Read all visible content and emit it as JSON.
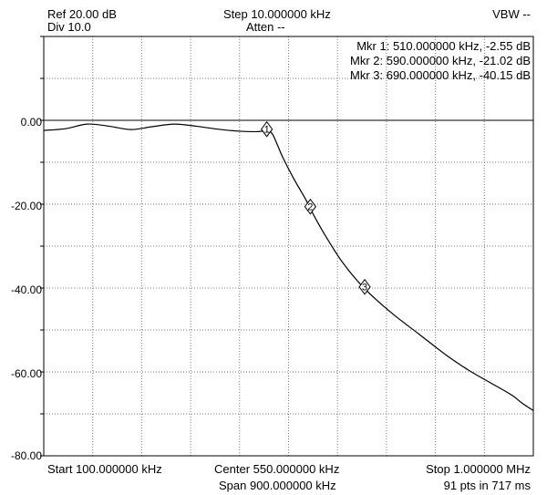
{
  "header": {
    "ref": "Ref 20.00 dB",
    "div": "Div 10.0",
    "step": "Step 10.000000 kHz",
    "atten": "Atten --",
    "vbw": "VBW --"
  },
  "markers_text": [
    "Mkr 1: 510.000000 kHz, -2.55 dB",
    "Mkr 2: 590.000000 kHz, -21.02 dB",
    "Mkr 3: 690.000000 kHz, -40.15 dB"
  ],
  "footer": {
    "start": "Start 100.000000 kHz",
    "center": "Center 550.000000 kHz",
    "stop": "Stop 1.000000 MHz",
    "span": "Span 900.000000 kHz",
    "points": "91 pts in 717 ms"
  },
  "colors": {
    "trace": "#000000",
    "grid": "#7a7a7a",
    "background": "#ffffff"
  },
  "chart_data": {
    "type": "line",
    "ylim": [
      -80,
      20
    ],
    "xlim_khz": [
      100,
      1000
    ],
    "grid": true,
    "y_tick_labels": [
      "0.00",
      "-20.00",
      "-40.00",
      "-60.00",
      "-80.00"
    ],
    "y_tick_values": [
      0,
      -20,
      -40,
      -60,
      -80
    ],
    "reference_line": 0,
    "series": [
      {
        "x_khz": [
          100,
          140,
          180,
          220,
          260,
          300,
          340,
          380,
          420,
          460,
          490,
          510,
          520,
          530,
          540,
          560,
          580,
          590,
          600,
          620,
          650,
          690,
          740,
          790,
          840,
          880,
          920,
          960,
          980,
          1000
        ],
        "y_db": [
          -2.4,
          -2.0,
          -0.9,
          -1.4,
          -2.2,
          -1.5,
          -0.9,
          -1.4,
          -2.1,
          -2.6,
          -2.7,
          -2.55,
          -3.2,
          -6.0,
          -9.0,
          -14.0,
          -18.5,
          -21.02,
          -23.5,
          -28.0,
          -34.0,
          -40.15,
          -46.0,
          -51.0,
          -56.0,
          -59.5,
          -62.5,
          -65.5,
          -67.5,
          -69.2
        ]
      }
    ],
    "markers": [
      {
        "label": "1",
        "x_khz": 510,
        "y_db": -2.55
      },
      {
        "label": "2",
        "x_khz": 590,
        "y_db": -21.02
      },
      {
        "label": "3",
        "x_khz": 690,
        "y_db": -40.15
      }
    ]
  }
}
